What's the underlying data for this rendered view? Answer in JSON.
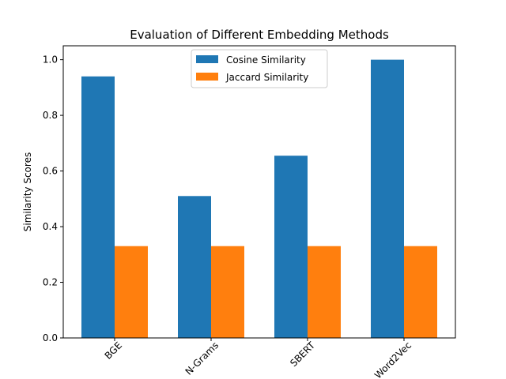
{
  "chart_data": {
    "type": "bar",
    "title": "Evaluation of Different Embedding Methods",
    "xlabel": "",
    "ylabel": "Similarity Scores",
    "categories": [
      "BGE",
      "N-Grams",
      "SBERT",
      "Word2Vec"
    ],
    "series": [
      {
        "name": "Cosine Similarity",
        "color": "#1f77b4",
        "values": [
          0.94,
          0.51,
          0.655,
          1.0
        ]
      },
      {
        "name": "Jaccard Similarity",
        "color": "#ff7f0e",
        "values": [
          0.33,
          0.33,
          0.33,
          0.33
        ]
      }
    ],
    "ylim": [
      0,
      1.05
    ],
    "yticks": [
      "0.0",
      "0.2",
      "0.4",
      "0.6",
      "0.8",
      "1.0"
    ],
    "grid": false,
    "legend_position": "top-center"
  }
}
